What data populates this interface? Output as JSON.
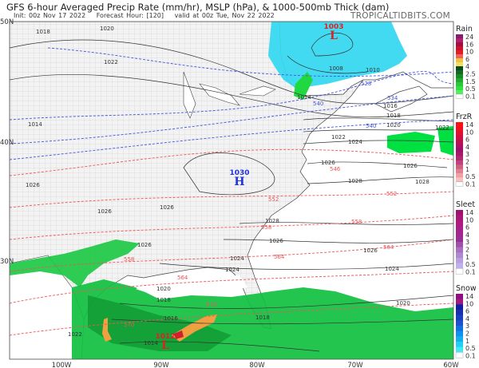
{
  "header": {
    "title": "GFS 6-hour Averaged Precip Rate (mm/hr), MSLP (hPa), & 1000-500mb Thick (dam)",
    "init": "Init: 00z Nov 17 2022",
    "forecast_hour": "Forecast Hour: [120]",
    "valid": "valid at 00z Tue, Nov 22 2022",
    "brand": "TROPICALTIDBITS.COM"
  },
  "axes": {
    "lat_labels": [
      "50N",
      "40N",
      "30N"
    ],
    "lon_labels": [
      "100W",
      "90W",
      "80W",
      "70W",
      "60W"
    ]
  },
  "pressure_centers": [
    {
      "type": "L",
      "value": "1003",
      "color": "#dd2222"
    },
    {
      "type": "H",
      "value": "1030",
      "color": "#2233dd"
    },
    {
      "type": "L",
      "value": "1012",
      "color": "#dd2222"
    }
  ],
  "isobar_labels": [
    "1018",
    "1020",
    "1022",
    "1008",
    "1010",
    "1014",
    "1016",
    "1018",
    "1020",
    "1022",
    "1022",
    "1024",
    "1026",
    "1028",
    "1028",
    "1026",
    "1026",
    "1024",
    "1024",
    "1026",
    "1026",
    "1024",
    "1020",
    "1018",
    "1016",
    "1014",
    "1022",
    "1014",
    "1026",
    "1026",
    "1018",
    "1020",
    "1028",
    "1026"
  ],
  "thickness_labels_cold": [
    "528",
    "534",
    "540",
    "540"
  ],
  "thickness_labels_warm": [
    "546",
    "552",
    "552",
    "558",
    "558",
    "564",
    "564",
    "558",
    "564",
    "570",
    "570"
  ],
  "legends": [
    {
      "title": "Rain",
      "ticks": [
        "24",
        "16",
        "10",
        "6",
        "4",
        "2.5",
        "1.5",
        "0.5",
        "0.1"
      ],
      "colors": [
        "#8a1a6e",
        "#b0206e",
        "#a01040",
        "#d01030",
        "#e02020",
        "#f06060",
        "#f0c040",
        "#f0e060",
        "#0a4a1a",
        "#106a20",
        "#188a28",
        "#20aa30",
        "#28c838",
        "#30e040",
        "#50f060",
        "#ffffff"
      ]
    },
    {
      "title": "FrzR",
      "ticks": [
        "14",
        "10",
        "6",
        "4",
        "3",
        "2",
        "1",
        "0.5",
        "0.1"
      ],
      "colors": [
        "#ff1010",
        "#f01020",
        "#e01030",
        "#d01040",
        "#c01050",
        "#b01060",
        "#a01070",
        "#a81a68",
        "#b02a70",
        "#c04080",
        "#d06080",
        "#e08090",
        "#f0a0a0",
        "#f8c0c0",
        "#ffffff"
      ]
    },
    {
      "title": "Sleet",
      "ticks": [
        "14",
        "10",
        "6",
        "4",
        "3",
        "2",
        "1",
        "0.5",
        "0.1"
      ],
      "colors": [
        "#a01070",
        "#a81878",
        "#b01a80",
        "#a82088",
        "#a02890",
        "#982e98",
        "#a050a8",
        "#a870c0",
        "#b088d0",
        "#b8a0e0",
        "#c0b0f0",
        "#ffffff"
      ]
    },
    {
      "title": "Snow",
      "ticks": [
        "14",
        "10",
        "6",
        "4",
        "3",
        "2",
        "1",
        "0.5",
        "0.1"
      ],
      "colors": [
        "#901080",
        "#a01880",
        "#1020a0",
        "#1830b0",
        "#1840c0",
        "#2050d0",
        "#1070e0",
        "#1090f0",
        "#10b0f0",
        "#20d0f0",
        "#40e8f8",
        "#ffffff"
      ]
    }
  ]
}
